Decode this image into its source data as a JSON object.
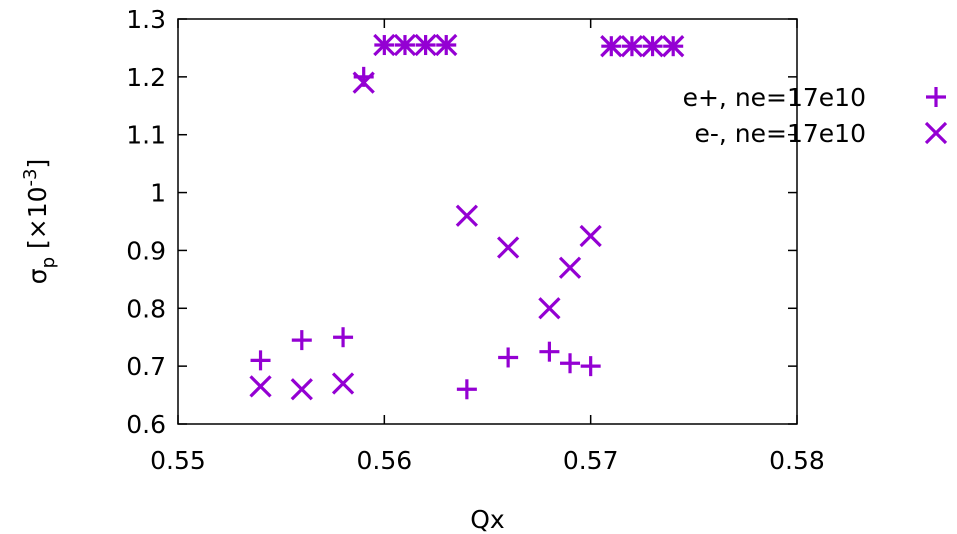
{
  "chart_data": {
    "type": "scatter",
    "xlabel": "Qx",
    "ylabel": "σp [×10-3]",
    "ylabel_parts": {
      "sym": "σ",
      "sub": "p",
      "pre": " [×10",
      "sup": "-3",
      "post": "]"
    },
    "xlim": [
      0.55,
      0.58
    ],
    "ylim": [
      0.6,
      1.3
    ],
    "x_ticks": [
      "0.55",
      "0.56",
      "0.57",
      "0.58"
    ],
    "y_ticks": [
      "0.6",
      "0.7",
      "0.8",
      "0.9",
      "1",
      "1.1",
      "1.2",
      "1.3"
    ],
    "grid": false,
    "legend_position": "top-right",
    "color": "#9400d3",
    "series": [
      {
        "name": "e+, ne=17e10",
        "marker": "plus",
        "points": [
          [
            0.554,
            0.71
          ],
          [
            0.556,
            0.745
          ],
          [
            0.558,
            0.75
          ],
          [
            0.559,
            1.2
          ],
          [
            0.56,
            1.255
          ],
          [
            0.561,
            1.255
          ],
          [
            0.562,
            1.255
          ],
          [
            0.563,
            1.255
          ],
          [
            0.564,
            0.66
          ],
          [
            0.566,
            0.715
          ],
          [
            0.568,
            0.725
          ],
          [
            0.569,
            0.705
          ],
          [
            0.57,
            0.7
          ],
          [
            0.571,
            1.253
          ],
          [
            0.572,
            1.253
          ],
          [
            0.573,
            1.253
          ],
          [
            0.574,
            1.253
          ]
        ]
      },
      {
        "name": "e-, ne=17e10",
        "marker": "cross",
        "points": [
          [
            0.554,
            0.665
          ],
          [
            0.556,
            0.66
          ],
          [
            0.558,
            0.67
          ],
          [
            0.559,
            1.19
          ],
          [
            0.56,
            1.255
          ],
          [
            0.561,
            1.255
          ],
          [
            0.562,
            1.255
          ],
          [
            0.563,
            1.255
          ],
          [
            0.564,
            0.96
          ],
          [
            0.566,
            0.905
          ],
          [
            0.568,
            0.8
          ],
          [
            0.569,
            0.87
          ],
          [
            0.57,
            0.925
          ],
          [
            0.571,
            1.253
          ],
          [
            0.572,
            1.253
          ],
          [
            0.573,
            1.253
          ],
          [
            0.574,
            1.253
          ]
        ]
      }
    ]
  }
}
